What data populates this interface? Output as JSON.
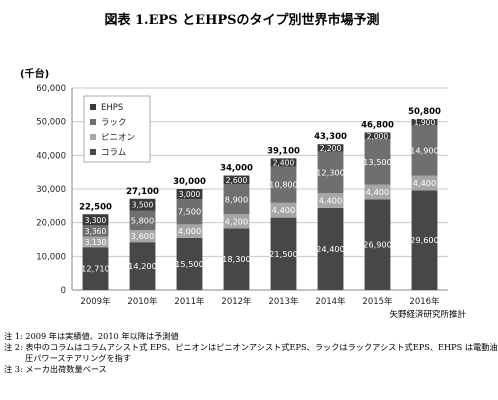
{
  "chart_data": {
    "type": "bar",
    "stacked": true,
    "title": "図表 1.EPS とEHPSのタイプ別世界市場予測",
    "ylabel": "(千台)",
    "ylim": [
      0,
      60000
    ],
    "yticks": [
      "0",
      "10,000",
      "20,000",
      "30,000",
      "40,000",
      "50,000",
      "60,000"
    ],
    "grid": true,
    "legend_position": "top-left",
    "categories": [
      "2009年",
      "2010年",
      "2011年",
      "2012年",
      "2013年",
      "2014年",
      "2015年",
      "2016年"
    ],
    "series": [
      {
        "name": "コラム",
        "color": "#474747",
        "values": [
          12710,
          14200,
          15500,
          18300,
          21500,
          24400,
          26900,
          29600
        ],
        "labels": [
          "12,710",
          "14,200",
          "15,500",
          "18,300",
          "21,500",
          "24,400",
          "26,900",
          "29,600"
        ]
      },
      {
        "name": "ピニオン",
        "color": "#a6a6a6",
        "values": [
          3130,
          3600,
          4000,
          4200,
          4400,
          4400,
          4400,
          4400
        ],
        "labels": [
          "3,130",
          "3,600",
          "4,000",
          "4,200",
          "4,400",
          "4,400",
          "4,400",
          "4,400"
        ]
      },
      {
        "name": "ラック",
        "color": "#6f6f6f",
        "values": [
          3360,
          5800,
          7500,
          8900,
          10800,
          12300,
          13500,
          14900
        ],
        "labels": [
          "3,360",
          "5,800",
          "7,500",
          "8,900",
          "10,800",
          "12,300",
          "13,500",
          "14,900"
        ]
      },
      {
        "name": "EHPS",
        "color": "#3a3a3a",
        "values": [
          3300,
          3500,
          3000,
          2600,
          2400,
          2200,
          2000,
          1900
        ],
        "labels": [
          "3,300",
          "3,500",
          "3,000",
          "2,600",
          "2,400",
          "2,200",
          "2,000",
          "1,900"
        ]
      }
    ],
    "totals": [
      22500,
      27100,
      30000,
      34000,
      39100,
      43300,
      46800,
      50800
    ],
    "total_labels": [
      "22,500",
      "27,100",
      "30,000",
      "34,000",
      "39,100",
      "43,300",
      "46,800",
      "50,800"
    ],
    "legend_order": [
      "EHPS",
      "ラック",
      "ピニオン",
      "コラム"
    ]
  },
  "source": "矢野経済研究所推計",
  "notes": {
    "note1": "注 1: 2009 年は実績値、2010 年以降は予測値",
    "note2": "注 2: 表中のコラムはコラムアシスト式 EPS、ピニオンはピニオンアシスト式EPS、ラックはラックアシスト式EPS、EHPS は電動油",
    "note2b": "圧パワーステアリングを指す",
    "note3": "注 3: メーカ出荷数量ベース"
  }
}
